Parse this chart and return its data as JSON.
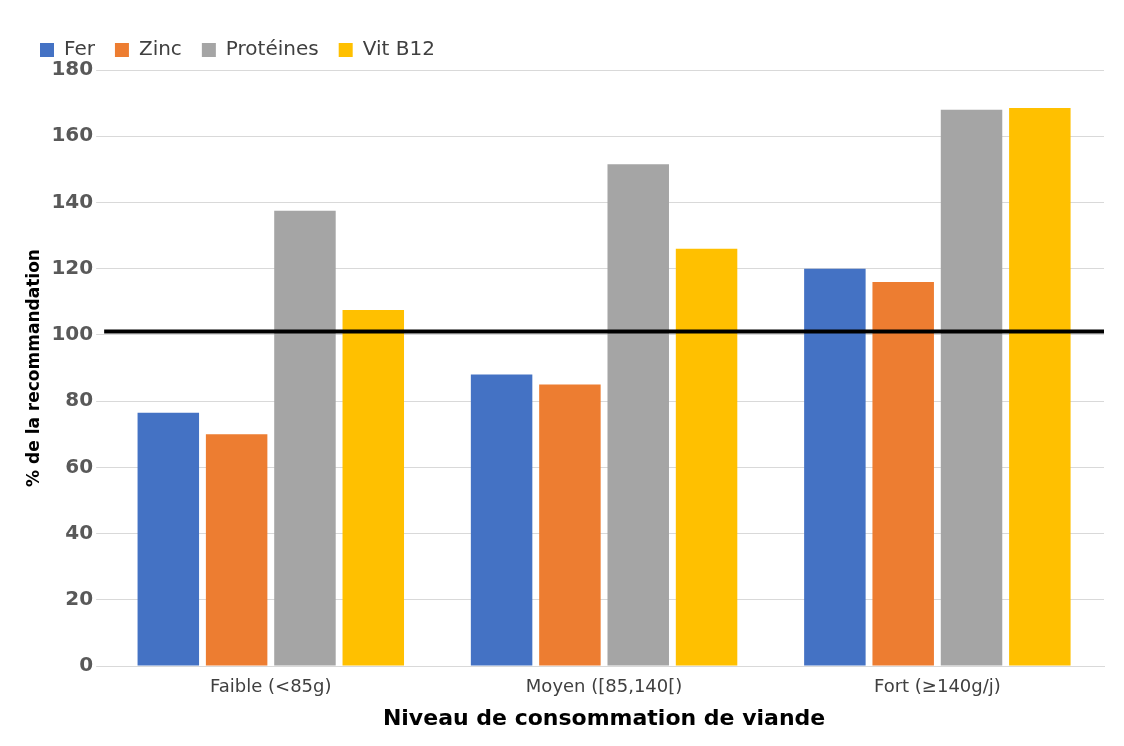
{
  "chart_data": {
    "type": "bar",
    "xlabel": "Niveau de consommation de viande",
    "ylabel": "% de la recommandation",
    "categories": [
      "Faible (<85g)",
      "Moyen ([85,140[)",
      "Fort (≥140g/j)"
    ],
    "series": [
      {
        "name": "Fer",
        "color": "#4472c4",
        "values": [
          76.5,
          88,
          120
        ]
      },
      {
        "name": "Zinc",
        "color": "#ed7d31",
        "values": [
          70,
          85,
          116
        ]
      },
      {
        "name": "Protéines",
        "color": "#a5a5a5",
        "values": [
          137.5,
          151.5,
          168
        ]
      },
      {
        "name": "Vit B12",
        "color": "#ffc000",
        "values": [
          107.5,
          126,
          168.5
        ]
      }
    ],
    "ylim": [
      0,
      180
    ],
    "yticks": [
      0,
      20,
      40,
      60,
      80,
      100,
      120,
      140,
      160,
      180
    ],
    "grid": "y",
    "legend": "top left",
    "ref_lines": [
      {
        "axis": "y",
        "value": 101,
        "color": "#000000"
      }
    ]
  }
}
